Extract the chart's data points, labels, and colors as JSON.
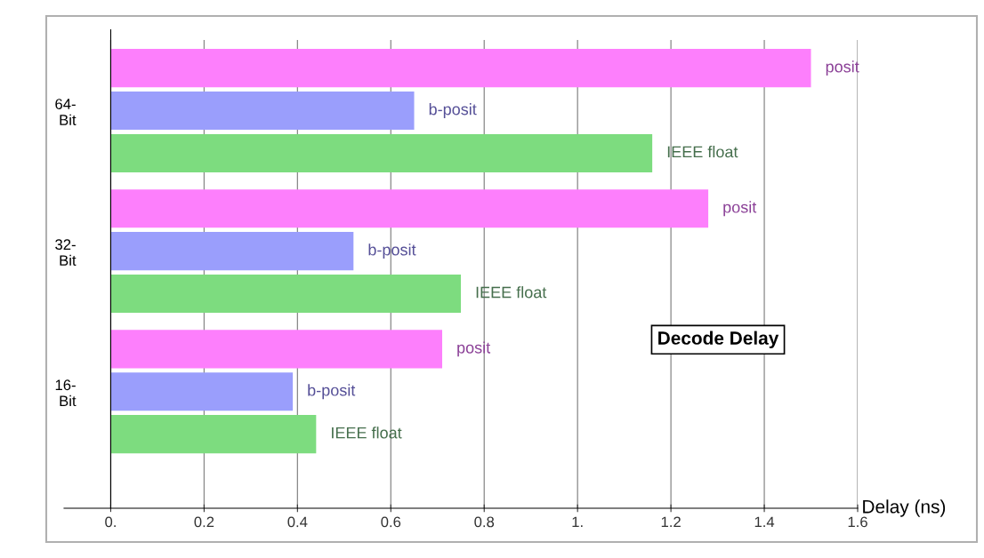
{
  "chart_data": {
    "type": "bar",
    "orientation": "horizontal",
    "categories": [
      "64-\nBit",
      "32-\nBit",
      "16-\nBit"
    ],
    "series": [
      {
        "name": "posit",
        "color": "#fd7ffc",
        "values": [
          1.5,
          1.28,
          0.71
        ]
      },
      {
        "name": "b-posit",
        "color": "#9a9efc",
        "values": [
          0.65,
          0.52,
          0.39
        ]
      },
      {
        "name": "IEEE float",
        "color": "#7ddc7f",
        "values": [
          1.16,
          0.75,
          0.44
        ]
      }
    ],
    "xlabel": "Delay (ns)",
    "annotations": [
      "Decode Delay"
    ],
    "xlim": [
      -0.1,
      1.6
    ],
    "xticks": [
      {
        "value": 0,
        "label": "0."
      },
      0.2,
      0.4,
      0.6,
      0.8,
      {
        "value": 1,
        "label": "1."
      },
      1.2,
      1.4,
      1.6
    ],
    "grid": "x",
    "legend": false
  }
}
